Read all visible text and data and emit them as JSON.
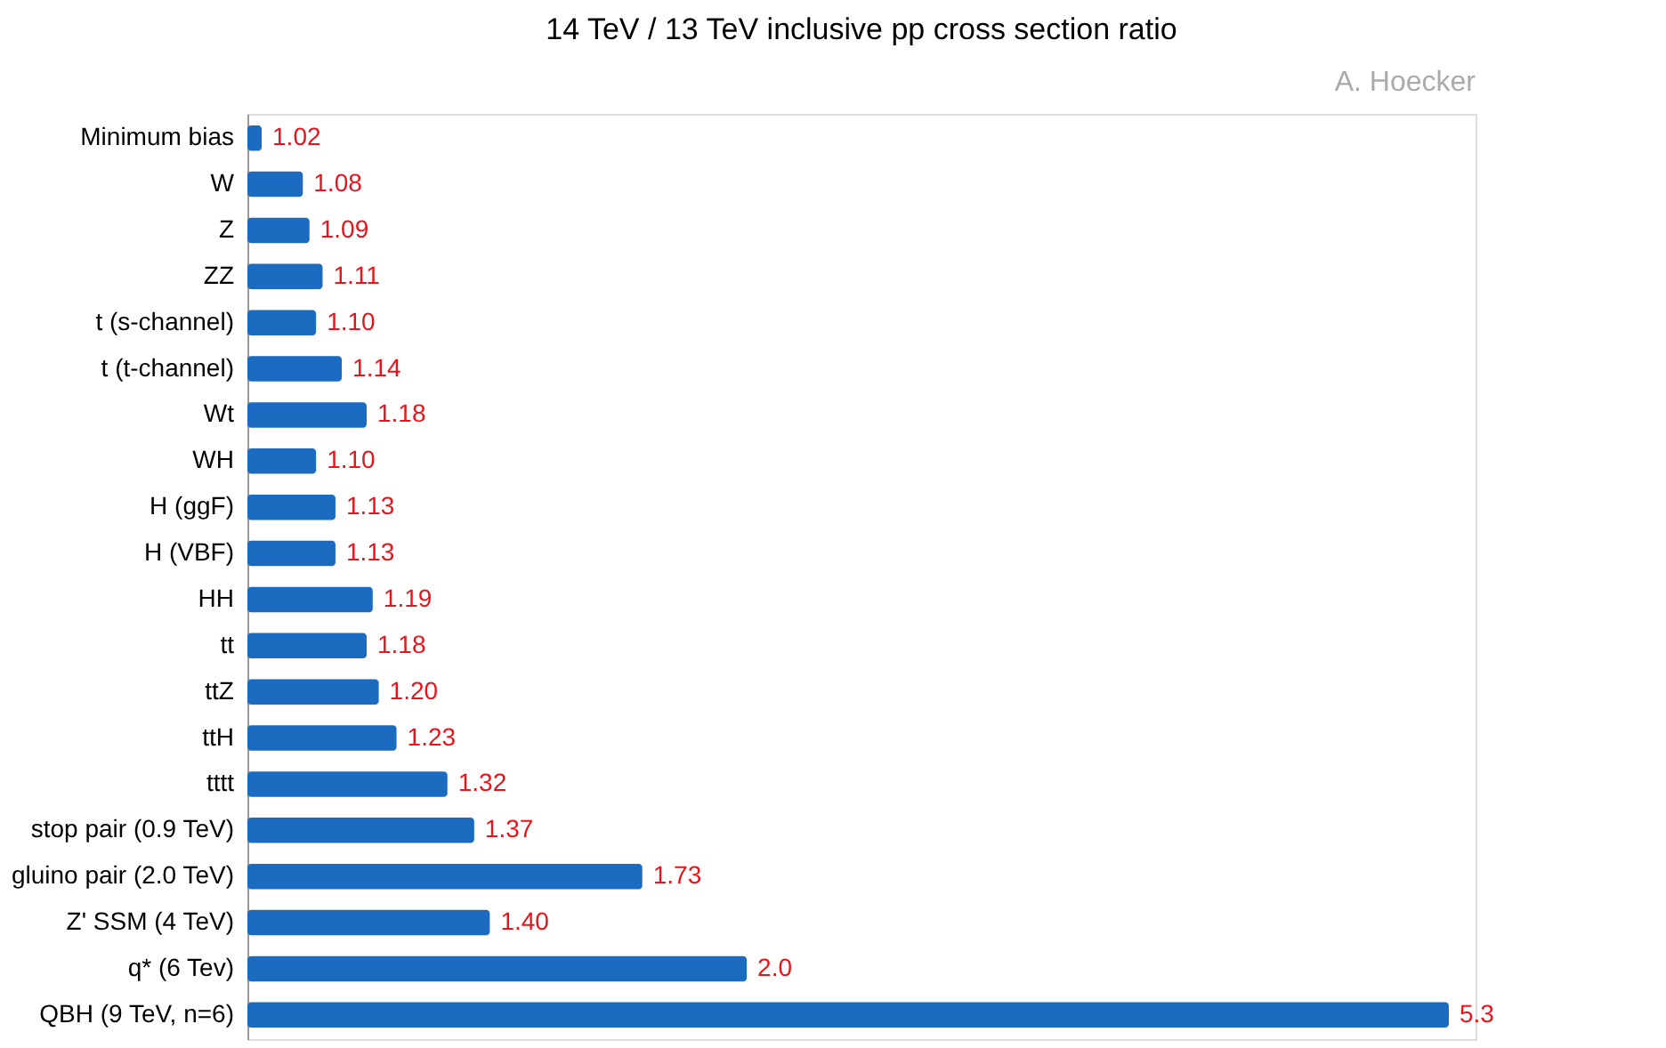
{
  "chart_data": {
    "type": "bar",
    "orientation": "horizontal",
    "title": "14 TeV / 13 TeV inclusive pp cross section ratio",
    "annotations": [
      "A. Hoecker"
    ],
    "categories": [
      "Minimum bias",
      "W",
      "Z",
      "ZZ",
      "t (s-channel)",
      "t (t-channel)",
      "Wt",
      "WH",
      "H (ggF)",
      "H (VBF)",
      "HH",
      "tt",
      "ttZ",
      "ttH",
      "tttt",
      "stop pair (0.9 TeV)",
      "gluino pair (2.0 TeV)",
      "Z' SSM (4 TeV)",
      "q* (6 Tev)",
      "QBH (9 TeV, n=6)"
    ],
    "values": [
      1.02,
      1.08,
      1.09,
      1.11,
      1.1,
      1.14,
      1.18,
      1.1,
      1.13,
      1.13,
      1.19,
      1.18,
      1.2,
      1.23,
      1.32,
      1.37,
      1.73,
      1.4,
      2.0,
      5.3
    ],
    "value_labels": [
      "1.02",
      "1.08",
      "1.09",
      "1.11",
      "1.10",
      "1.14",
      "1.18",
      "1.10",
      "1.13",
      "1.13",
      "1.19",
      "1.18",
      "1.20",
      "1.23",
      "1.32",
      "1.37",
      "1.73",
      "1.40",
      "2.0",
      "5.3"
    ],
    "color": "#1b6cc0",
    "log": "x",
    "xlim": [
      1,
      5.5
    ],
    "tick_labels": "y",
    "grid": false
  }
}
